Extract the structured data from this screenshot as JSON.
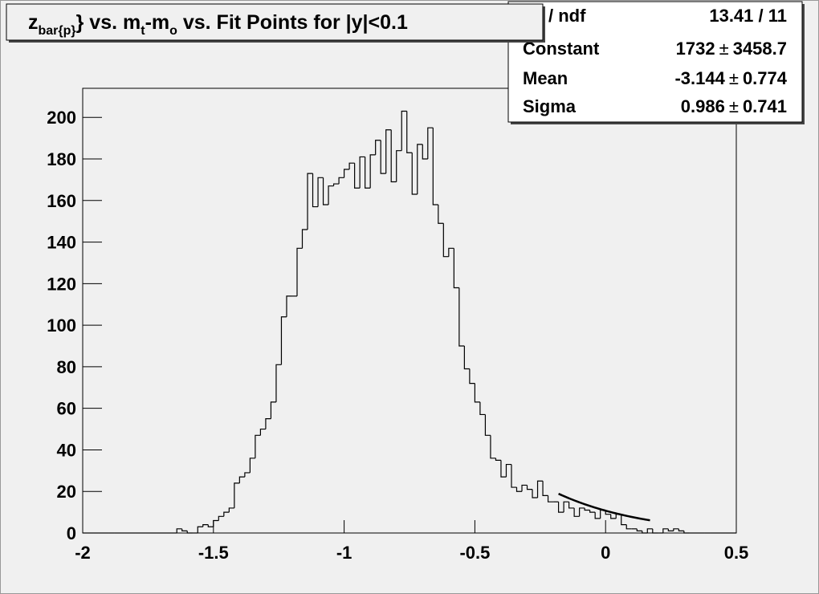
{
  "chart_data": {
    "type": "histogram",
    "title": [
      {
        "text": "z"
      },
      {
        "text": "bar{p}",
        "sub": true
      },
      {
        "text": "} vs. m"
      },
      {
        "text": "t",
        "sub": true
      },
      {
        "text": "-m"
      },
      {
        "text": "o",
        "sub": true
      },
      {
        "text": " vs. Fit Points for |y|<0.1"
      }
    ],
    "bins": [
      -2,
      -1.98,
      -1.96,
      -1.94,
      -1.92,
      -1.9,
      -1.88,
      -1.86,
      -1.84,
      -1.82,
      -1.8,
      -1.78,
      -1.76,
      -1.74,
      -1.72,
      -1.7,
      -1.68,
      -1.66,
      -1.64,
      -1.62,
      -1.6,
      -1.58,
      -1.56,
      -1.54,
      -1.52,
      -1.5,
      -1.48,
      -1.46,
      -1.44,
      -1.42,
      -1.4,
      -1.38,
      -1.36,
      -1.34,
      -1.32,
      -1.3,
      -1.28,
      -1.26,
      -1.24,
      -1.22,
      -1.2,
      -1.18,
      -1.16,
      -1.14,
      -1.12,
      -1.1,
      -1.08,
      -1.06,
      -1.04,
      -1.02,
      -1,
      -0.98,
      -0.96,
      -0.94,
      -0.92,
      -0.9,
      -0.88,
      -0.86,
      -0.84,
      -0.82,
      -0.8,
      -0.78,
      -0.76,
      -0.74,
      -0.72,
      -0.7,
      -0.68,
      -0.66,
      -0.64,
      -0.62,
      -0.6,
      -0.58,
      -0.56,
      -0.54,
      -0.52,
      -0.5,
      -0.48,
      -0.46,
      -0.44,
      -0.42,
      -0.4,
      -0.38,
      -0.36,
      -0.34,
      -0.32,
      -0.3,
      -0.28,
      -0.26,
      -0.24,
      -0.22,
      -0.2,
      -0.18,
      -0.16,
      -0.14,
      -0.12,
      -0.1,
      -0.08,
      -0.06,
      -0.04,
      -0.02,
      0,
      0.02,
      0.04,
      0.06,
      0.08,
      0.1,
      0.12,
      0.14,
      0.16,
      0.18,
      0.2,
      0.22,
      0.24,
      0.26,
      0.28,
      0.3,
      0.32,
      0.34,
      0.36,
      0.38,
      0.4,
      0.42,
      0.44,
      0.46,
      0.48,
      0.5
    ],
    "values": [
      0,
      0,
      0,
      0,
      0,
      0,
      0,
      0,
      0,
      0,
      0,
      0,
      0,
      0,
      0,
      0,
      0,
      0,
      2,
      1,
      0,
      0,
      3,
      4,
      3,
      6,
      8,
      10,
      12,
      24,
      27,
      29,
      36,
      47,
      50,
      55,
      63,
      81,
      104,
      114,
      114,
      137,
      146,
      173,
      157,
      171,
      158,
      167,
      168,
      171,
      175,
      178,
      166,
      181,
      166,
      182,
      189,
      173,
      194,
      169,
      184,
      203,
      183,
      163,
      187,
      180,
      195,
      158,
      149,
      133,
      137,
      118,
      90,
      79,
      72,
      63,
      57,
      47,
      36,
      35,
      27,
      33,
      22,
      20,
      23,
      21,
      17,
      25,
      18,
      15,
      15,
      10,
      15,
      12,
      8,
      12,
      11,
      10,
      7,
      11,
      9,
      7,
      9,
      4,
      2,
      2,
      1,
      0,
      2,
      0,
      0,
      2,
      1,
      2,
      1,
      0,
      0,
      0,
      0,
      0,
      0,
      0,
      0,
      0,
      0
    ],
    "color": "#000000",
    "xlim": [
      -2,
      0.5
    ],
    "xticks": [
      -2,
      -1.5,
      -1,
      -0.5,
      0,
      0.5
    ],
    "ylim": [
      0,
      214
    ],
    "yticks": [
      0,
      20,
      40,
      60,
      80,
      100,
      120,
      140,
      160,
      180,
      200
    ],
    "fit": {
      "chi2": {
        "label": "/ ndf",
        "value": "13.41 / 11"
      },
      "plus_minus": "±",
      "parameters": [
        {
          "name": "Constant",
          "value": 1732,
          "error": 3458.7
        },
        {
          "name": "Mean",
          "value": -3.144,
          "error": 0.774
        },
        {
          "name": "Sigma",
          "value": 0.986,
          "error": 0.741
        }
      ],
      "range": [
        -0.18,
        0.17
      ]
    }
  }
}
